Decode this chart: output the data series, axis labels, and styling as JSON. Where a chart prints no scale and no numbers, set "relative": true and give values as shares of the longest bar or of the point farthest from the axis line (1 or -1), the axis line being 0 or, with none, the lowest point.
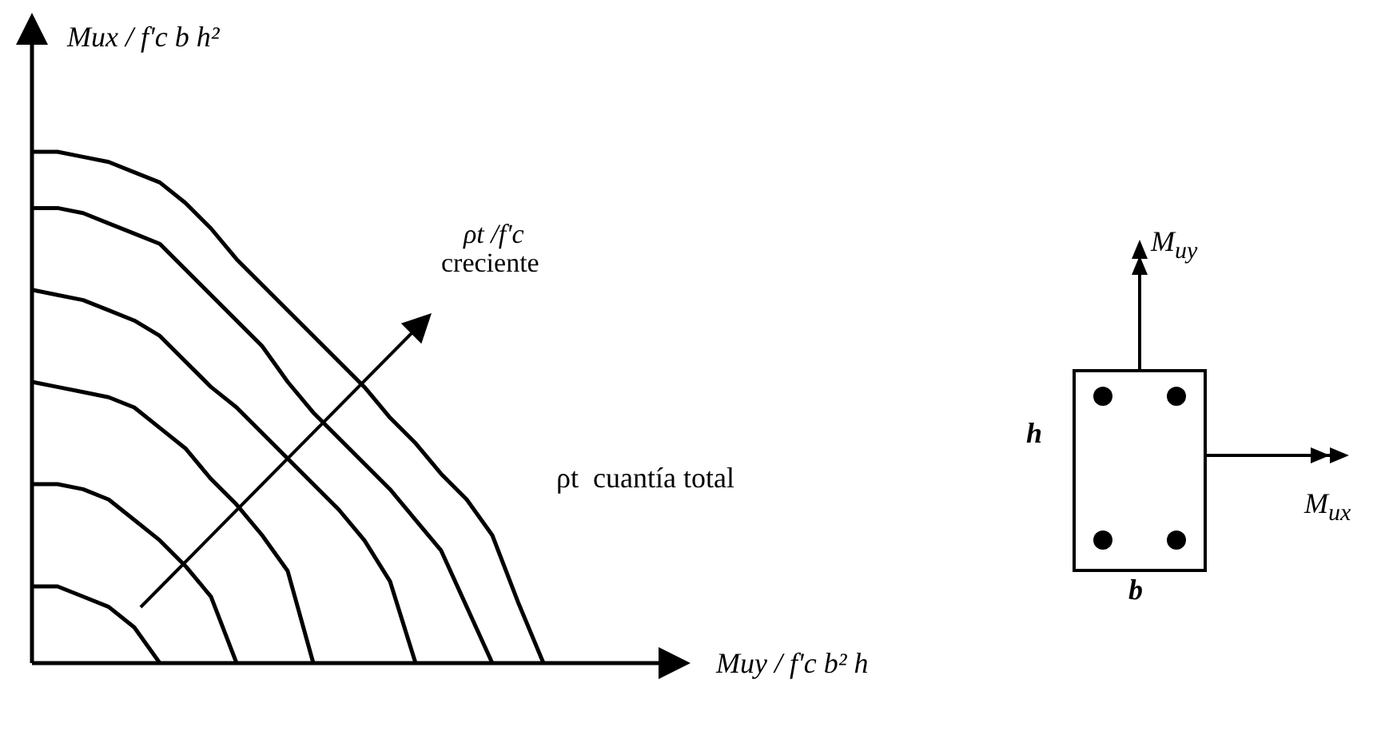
{
  "chart_data": {
    "type": "line",
    "relative": true,
    "legend": false,
    "marker": "none",
    "line_style": "solid",
    "xlabel": "Muy / f'c b² h",
    "ylabel": "Mux / f'c b h²",
    "annotations": [
      "ρt /f'c\ncreciente",
      "ρt  cuantía total",
      "M$_{uy}$",
      "M$_{ux}$",
      "h",
      "b"
    ],
    "categories": [
      null,
      null,
      null,
      null,
      null,
      null,
      null,
      null,
      null,
      null,
      null,
      null,
      null,
      null,
      null,
      null,
      null,
      null,
      null,
      null,
      null,
      null,
      null,
      null,
      null,
      null
    ],
    "series": [
      {
        "color": "#000000",
        "values": [
          1,
          1,
          0.99,
          0.98,
          0.96,
          0.94,
          0.9,
          0.85,
          0.79,
          0.74,
          0.69,
          0.64,
          0.59,
          0.54,
          0.48,
          0.43,
          0.37,
          0.32,
          0.25,
          0.12,
          0,
          null,
          null,
          null,
          null,
          null
        ]
      },
      {
        "color": "#000000",
        "values": [
          0.89,
          0.89,
          0.88,
          0.86,
          0.84,
          0.82,
          0.77,
          0.72,
          0.67,
          0.62,
          0.55,
          0.49,
          0.44,
          0.39,
          0.34,
          0.28,
          0.22,
          0.11,
          0,
          null,
          null,
          null,
          null,
          null,
          null,
          null
        ]
      },
      {
        "color": "#000000",
        "values": [
          0.73,
          0.72,
          0.71,
          0.69,
          0.67,
          0.64,
          0.59,
          0.54,
          0.5,
          0.45,
          0.4,
          0.35,
          0.3,
          0.24,
          0.16,
          0,
          null,
          null,
          null,
          null,
          null,
          null,
          null,
          null,
          null,
          null
        ]
      },
      {
        "color": "#000000",
        "values": [
          0.55,
          0.54,
          0.53,
          0.52,
          0.5,
          0.46,
          0.42,
          0.36,
          0.31,
          0.25,
          0.18,
          0,
          null,
          null,
          null,
          null,
          null,
          null,
          null,
          null,
          null,
          null,
          null,
          null,
          null,
          null
        ]
      },
      {
        "color": "#000000",
        "values": [
          0.35,
          0.35,
          0.34,
          0.32,
          0.28,
          0.24,
          0.19,
          0.13,
          0,
          null,
          null,
          null,
          null,
          null,
          null,
          null,
          null,
          null,
          null,
          null,
          null,
          null,
          null,
          null,
          null,
          null
        ]
      },
      {
        "color": "#000000",
        "values": [
          0.15,
          0.15,
          0.13,
          0.11,
          0.07,
          0,
          null,
          null,
          null,
          null,
          null,
          null,
          null,
          null,
          null,
          null,
          null,
          null,
          null,
          null,
          null,
          null,
          null,
          null,
          null,
          null
        ]
      }
    ]
  }
}
